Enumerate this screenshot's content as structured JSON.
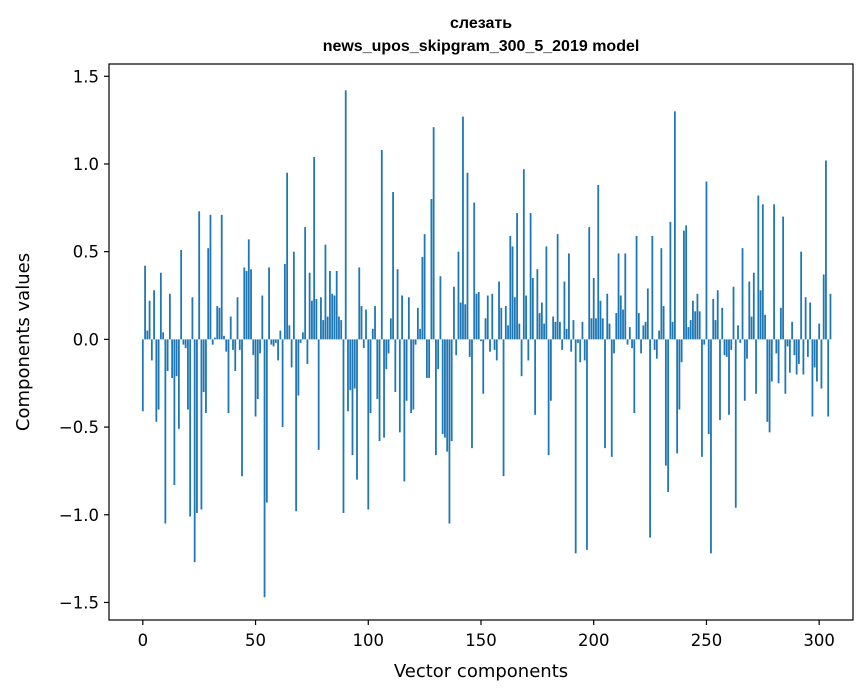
{
  "chart_data": {
    "type": "bar",
    "title": "слезать",
    "subtitle": "news_upos_skipgram_300_5_2019 model",
    "xlabel": "Vector components",
    "ylabel": "Components values",
    "xlim": [
      -15,
      315
    ],
    "ylim": [
      -1.6,
      1.57
    ],
    "xticks": [
      0,
      50,
      100,
      150,
      200,
      250,
      300
    ],
    "xtick_labels": [
      "0",
      "50",
      "100",
      "150",
      "200",
      "250",
      "300"
    ],
    "yticks": [
      -1.5,
      -1.0,
      -0.5,
      0.0,
      0.5,
      1.0,
      1.5
    ],
    "ytick_labels": [
      "−1.5",
      "−1.0",
      "−0.5",
      "0.0",
      "0.5",
      "1.0",
      "1.5"
    ],
    "bar_color": "#1f77b4",
    "grid": false,
    "values": [
      -0.41,
      0.42,
      0.05,
      0.22,
      -0.12,
      0.28,
      -0.47,
      -0.4,
      0.38,
      0.04,
      -1.05,
      -0.18,
      0.26,
      -0.22,
      -0.83,
      -0.21,
      -0.51,
      0.51,
      -0.03,
      -0.05,
      -0.4,
      -1.01,
      0.24,
      -1.27,
      -0.99,
      0.73,
      -0.97,
      -0.3,
      -0.42,
      0.52,
      0.71,
      -0.03,
      0.01,
      0.19,
      0.18,
      0.71,
      0.02,
      -0.07,
      -0.42,
      0.13,
      -0.06,
      -0.18,
      0.24,
      -0.06,
      -0.78,
      0.41,
      0.39,
      0.57,
      0.4,
      -0.09,
      -0.44,
      -0.34,
      -0.08,
      0.25,
      -1.47,
      -0.93,
      0.41,
      -0.03,
      -0.04,
      -0.02,
      -0.12,
      0.05,
      -0.5,
      0.43,
      0.95,
      0.08,
      -0.16,
      0.5,
      -0.98,
      -0.32,
      -0.02,
      0.04,
      0.64,
      -0.14,
      0.38,
      0.22,
      1.04,
      0.23,
      -0.63,
      0.24,
      0.11,
      0.54,
      0.13,
      0.39,
      0.26,
      0.25,
      0.39,
      0.13,
      0.11,
      -0.99,
      1.42,
      -0.41,
      -0.29,
      -0.66,
      -0.28,
      -0.8,
      0.41,
      0.19,
      -0.05,
      0.17,
      -0.97,
      -0.42,
      0.06,
      0.19,
      -0.34,
      -0.58,
      1.08,
      -0.56,
      -0.17,
      -0.08,
      0.12,
      0.84,
      -0.3,
      0.4,
      -0.53,
      0.25,
      -0.81,
      -0.35,
      0.24,
      -0.42,
      -0.4,
      -0.03,
      0.18,
      0.06,
      0.47,
      0.6,
      -0.22,
      -0.22,
      0.8,
      1.21,
      -0.66,
      -0.17,
      0.36,
      -0.54,
      -0.56,
      -0.64,
      -1.05,
      -0.58,
      0.3,
      -0.09,
      0.5,
      0.21,
      1.27,
      0.2,
      0.95,
      -0.1,
      -0.62,
      0.78,
      0.26,
      0.27,
      -0.01,
      -0.31,
      0.12,
      0.25,
      -0.07,
      0.26,
      -0.06,
      -0.12,
      0.33,
      0.18,
      -0.78,
      0.19,
      0.08,
      0.59,
      0.53,
      0.24,
      0.72,
      0.09,
      -0.21,
      0.97,
      0.25,
      -0.12,
      0.72,
      0.35,
      -0.43,
      0.4,
      0.15,
      0.21,
      0.09,
      0.53,
      -0.66,
      -0.35,
      0.13,
      0.1,
      0.6,
      0.1,
      -0.06,
      0.33,
      0.06,
      0.49,
      -0.07,
      0.11,
      -1.22,
      -0.02,
      -0.13,
      0.1,
      -0.12,
      -1.2,
      0.64,
      0.12,
      0.35,
      0.12,
      0.88,
      0.22,
      0.12,
      -0.62,
      0.26,
      0.09,
      -0.67,
      -0.08,
      0.15,
      0.49,
      0.25,
      0.17,
      0.49,
      -0.03,
      0.07,
      -0.05,
      -0.42,
      0.59,
      0.15,
      -0.08,
      0.08,
      0.1,
      0.29,
      -1.13,
      0.59,
      -0.06,
      -0.11,
      0.05,
      0.52,
      0.19,
      -0.72,
      -0.87,
      0.67,
      0.1,
      1.3,
      -0.65,
      -0.4,
      -0.13,
      0.62,
      0.65,
      0.07,
      0.11,
      0.22,
      0.16,
      0.26,
      0.16,
      -0.67,
      -0.03,
      0.9,
      -0.54,
      -1.22,
      0.23,
      0.11,
      0.28,
      -0.46,
      0.18,
      -0.09,
      -0.1,
      -0.43,
      -0.06,
      0.3,
      -0.96,
      0.08,
      -0.02,
      0.52,
      -0.35,
      -0.11,
      0.33,
      0.13,
      0.38,
      -0.31,
      0.82,
      0.28,
      0.77,
      0.14,
      -0.47,
      -0.53,
      -0.24,
      0.77,
      -0.08,
      -0.25,
      0.18,
      0.7,
      -0.31,
      -0.04,
      -0.19,
      0.1,
      -0.09,
      -0.2,
      -0.14,
      0.5,
      -0.2,
      0.24,
      -0.1,
      0.21,
      -0.44,
      -0.16,
      -0.24,
      0.09,
      -0.28,
      0.37,
      1.02,
      -0.44,
      0.26
    ]
  }
}
